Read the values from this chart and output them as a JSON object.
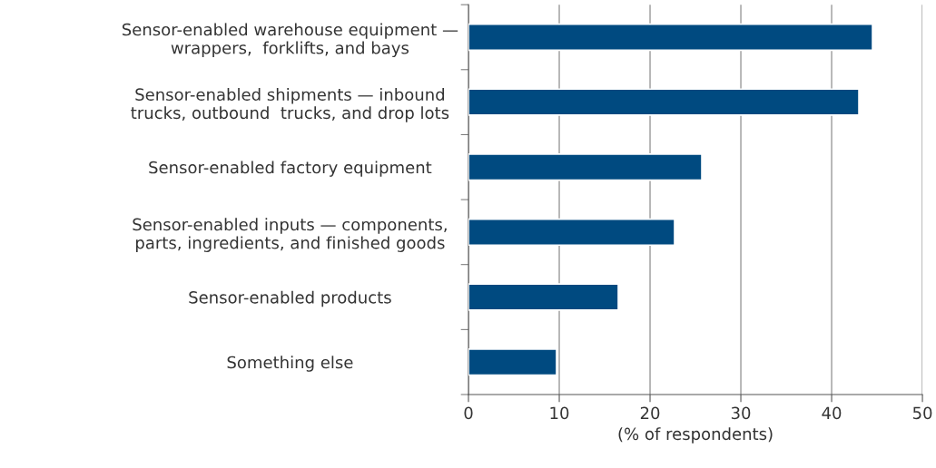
{
  "chart_data": {
    "type": "bar",
    "orientation": "horizontal",
    "xlabel": "(% of respondents)",
    "categories": [
      "Sensor-enabled warehouse equipment —\nwrappers,  forklifts, and bays",
      "Sensor-enabled shipments — inbound\ntrucks, outbound  trucks, and drop lots",
      "Sensor-enabled factory equipment",
      "Sensor-enabled inputs — components,\nparts, ingredients, and finished goods",
      "Sensor-enabled products",
      "Something else"
    ],
    "values": [
      44.5,
      43,
      25.7,
      22.7,
      16.5,
      9.7
    ],
    "color": "#004a80",
    "xlim": [
      0,
      50
    ],
    "xticks": [
      0,
      10,
      20,
      30,
      40,
      50
    ],
    "grid": "x"
  }
}
